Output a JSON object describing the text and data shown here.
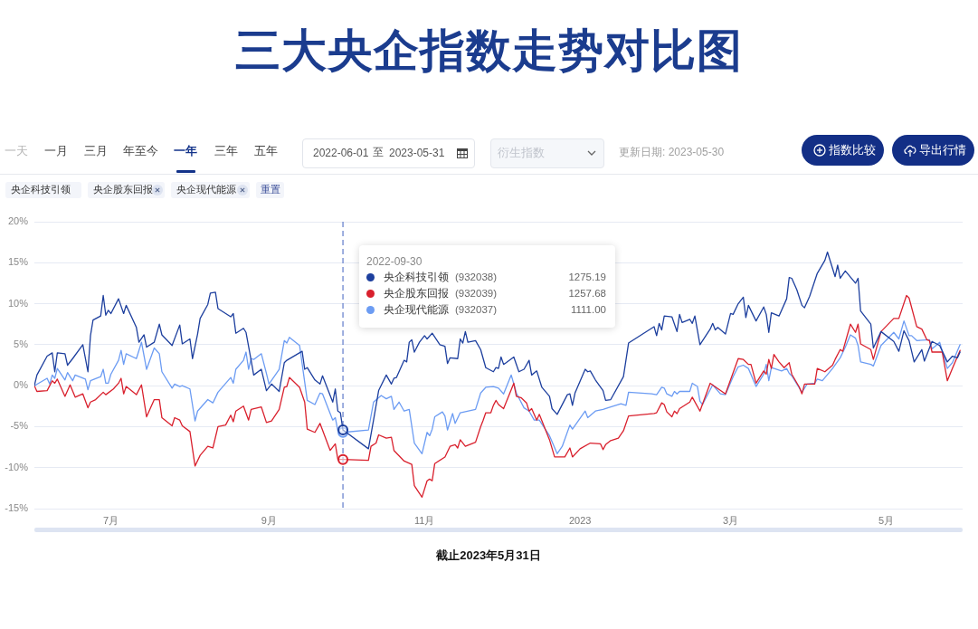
{
  "chart_data": {
    "type": "line",
    "title": "三大央企指数走势对比图",
    "series": [
      {
        "name": "央企科技引领",
        "color": "#1d3f9e",
        "x": [
          "2022-06-01",
          "2022-06-02",
          "2022-06-06",
          "2022-06-08",
          "2022-06-09",
          "2022-06-10",
          "2022-06-13",
          "2022-06-14",
          "2022-06-16",
          "2022-06-20",
          "2022-06-22",
          "2022-06-23",
          "2022-06-24",
          "2022-06-27",
          "2022-06-28",
          "2022-06-29",
          "2022-06-30",
          "2022-07-01",
          "2022-07-04",
          "2022-07-06",
          "2022-07-07",
          "2022-07-11",
          "2022-07-12",
          "2022-07-14",
          "2022-07-15",
          "2022-07-18",
          "2022-07-20",
          "2022-07-21",
          "2022-07-25",
          "2022-07-28",
          "2022-07-29",
          "2022-08-01",
          "2022-08-02",
          "2022-08-04",
          "2022-08-05",
          "2022-08-08",
          "2022-08-09",
          "2022-08-11",
          "2022-08-12",
          "2022-08-17",
          "2022-08-18",
          "2022-08-19",
          "2022-08-22",
          "2022-08-23",
          "2022-08-25",
          "2022-08-26",
          "2022-08-29",
          "2022-08-31",
          "2022-09-02",
          "2022-09-05",
          "2022-09-07",
          "2022-09-08",
          "2022-09-14",
          "2022-09-15",
          "2022-09-16",
          "2022-09-19",
          "2022-09-21",
          "2022-09-22",
          "2022-09-26",
          "2022-09-27",
          "2022-09-28",
          "2022-09-29",
          "2022-09-30",
          "2022-10-10",
          "2022-10-12",
          "2022-10-14",
          "2022-10-17",
          "2022-10-19",
          "2022-10-20",
          "2022-10-21",
          "2022-10-24",
          "2022-10-25",
          "2022-10-26",
          "2022-10-27",
          "2022-10-28",
          "2022-10-30",
          "2022-11-01",
          "2022-11-02",
          "2022-11-04",
          "2022-11-07",
          "2022-11-09",
          "2022-11-10",
          "2022-11-11",
          "2022-11-14",
          "2022-11-15",
          "2022-11-16",
          "2022-11-17",
          "2022-11-18",
          "2022-11-21",
          "2022-11-23",
          "2022-11-25",
          "2022-11-28",
          "2022-11-29",
          "2022-11-30",
          "2022-12-01",
          "2022-12-02",
          "2022-12-03",
          "2022-12-06",
          "2022-12-08",
          "2022-12-10",
          "2022-12-12",
          "2022-12-13",
          "2022-12-15",
          "2022-12-17",
          "2022-12-20",
          "2022-12-21",
          "2022-12-23",
          "2022-12-27",
          "2022-12-28",
          "2022-12-29",
          "2022-12-30",
          "2023-01-03",
          "2023-01-04",
          "2023-01-05",
          "2023-01-07",
          "2023-01-10",
          "2023-01-11",
          "2023-01-13",
          "2023-01-18",
          "2023-01-20",
          "2023-01-30",
          "2023-01-31",
          "2023-02-01",
          "2023-02-02",
          "2023-02-03",
          "2023-02-06",
          "2023-02-08",
          "2023-02-09",
          "2023-02-10",
          "2023-02-13",
          "2023-02-14",
          "2023-02-15",
          "2023-02-17",
          "2023-02-21",
          "2023-02-22",
          "2023-02-23",
          "2023-02-24",
          "2023-02-27",
          "2023-03-01",
          "2023-03-02",
          "2023-03-04",
          "2023-03-06",
          "2023-03-07",
          "2023-03-08",
          "2023-03-11",
          "2023-03-14",
          "2023-03-15",
          "2023-03-16",
          "2023-03-17",
          "2023-03-20",
          "2023-03-23",
          "2023-03-24",
          "2023-03-25",
          "2023-03-27",
          "2023-03-29",
          "2023-03-30",
          "2023-04-01",
          "2023-04-04",
          "2023-04-07",
          "2023-04-08",
          "2023-04-11",
          "2023-04-12",
          "2023-04-13",
          "2023-04-15",
          "2023-04-19",
          "2023-04-20",
          "2023-04-21",
          "2023-04-25",
          "2023-04-26",
          "2023-04-29",
          "2023-05-04",
          "2023-05-06",
          "2023-05-08",
          "2023-05-10",
          "2023-05-12",
          "2023-05-15",
          "2023-05-16",
          "2023-05-19",
          "2023-05-22",
          "2023-05-25",
          "2023-05-27",
          "2023-05-29",
          "2023-05-30"
        ],
        "values": [
          0,
          1.3,
          3.6,
          4.0,
          1.7,
          4.0,
          3.9,
          2.5,
          3.3,
          5.0,
          1.7,
          6.1,
          8.0,
          8.5,
          11.0,
          8.6,
          9.2,
          8.8,
          10.6,
          8.8,
          9.8,
          7.1,
          5.3,
          6.2,
          4.7,
          5.3,
          7.5,
          6.2,
          4.9,
          7.4,
          5.1,
          5.7,
          3.3,
          6.3,
          8.2,
          9.9,
          11.3,
          11.4,
          9.4,
          8.4,
          8.8,
          6.4,
          7.0,
          6.5,
          3.1,
          1.3,
          2.0,
          -0.6,
          0.2,
          -0.7,
          2.8,
          3.1,
          4.2,
          2.0,
          2.2,
          0.7,
          0.2,
          1.2,
          -2.0,
          -0.4,
          -3.1,
          -3.3,
          -5.4,
          -7.7,
          -4.2,
          -0.6,
          1.3,
          0.2,
          0.9,
          1.0,
          3.1,
          2.9,
          5.3,
          5.6,
          4.1,
          5.3,
          6.1,
          5.7,
          6.4,
          5.0,
          4.8,
          2.7,
          3.4,
          3.3,
          5.7,
          5.2,
          6.6,
          5.3,
          5.5,
          4.4,
          2.2,
          1.7,
          2.2,
          2.1,
          3.5,
          2.6,
          2.8,
          3.5,
          1.7,
          2.0,
          3.1,
          1.3,
          1.8,
          -0.2,
          -1.3,
          -2.8,
          -3.5,
          -1.1,
          -1.0,
          -2.4,
          -0.9,
          2.0,
          1.7,
          1.8,
          0.7,
          -0.6,
          -1.8,
          -1.7,
          1.1,
          5.2,
          7.2,
          6.1,
          7.6,
          6.8,
          8.5,
          8.4,
          6.6,
          8.7,
          7.7,
          8.1,
          7.6,
          8.5,
          5.0,
          6.9,
          7.6,
          6.8,
          7.1,
          6.3,
          8.8,
          8.7,
          10.0,
          10.8,
          8.3,
          9.8,
          7.9,
          9.6,
          8.7,
          6.5,
          8.9,
          8.5,
          10.6,
          13.2,
          13.1,
          11.7,
          9.8,
          9.5,
          10.9,
          13.7,
          15.3,
          16.3,
          13.3,
          14.7,
          13.1,
          14.0,
          12.5,
          13.1,
          9.1,
          7.5,
          4.6,
          6.6,
          5.4,
          4.2,
          6.7,
          5.5,
          2.9,
          4.4,
          3.0,
          5.4,
          4.9,
          2.9,
          3.6,
          3.4,
          4.1
        ]
      },
      {
        "name": "央企股东回报",
        "color": "#d9202d",
        "x": [
          "2022-06-01",
          "2022-06-02",
          "2022-06-06",
          "2022-06-08",
          "2022-06-09",
          "2022-06-10",
          "2022-06-13",
          "2022-06-15",
          "2022-06-17",
          "2022-06-20",
          "2022-06-22",
          "2022-06-23",
          "2022-06-25",
          "2022-06-28",
          "2022-06-29",
          "2022-07-02",
          "2022-07-04",
          "2022-07-05",
          "2022-07-06",
          "2022-07-07",
          "2022-07-11",
          "2022-07-13",
          "2022-07-15",
          "2022-07-18",
          "2022-07-20",
          "2022-07-21",
          "2022-07-25",
          "2022-07-26",
          "2022-07-28",
          "2022-07-29",
          "2022-08-01",
          "2022-08-03",
          "2022-08-05",
          "2022-08-08",
          "2022-08-10",
          "2022-08-12",
          "2022-08-15",
          "2022-08-17",
          "2022-08-18",
          "2022-08-19",
          "2022-08-22",
          "2022-08-24",
          "2022-08-25",
          "2022-08-29",
          "2022-08-31",
          "2022-09-02",
          "2022-09-05",
          "2022-09-07",
          "2022-09-08",
          "2022-09-09",
          "2022-09-13",
          "2022-09-15",
          "2022-09-16",
          "2022-09-19",
          "2022-09-21",
          "2022-09-25",
          "2022-09-27",
          "2022-09-28",
          "2022-09-30",
          "2022-10-10",
          "2022-10-11",
          "2022-10-13",
          "2022-10-14",
          "2022-10-17",
          "2022-10-19",
          "2022-10-20",
          "2022-10-24",
          "2022-10-27",
          "2022-10-28",
          "2022-10-31",
          "2022-11-02",
          "2022-11-03",
          "2022-11-04",
          "2022-11-05",
          "2022-11-09",
          "2022-11-11",
          "2022-11-13",
          "2022-11-14",
          "2022-11-15",
          "2022-11-17",
          "2022-11-21",
          "2022-11-23",
          "2022-11-24",
          "2022-11-25",
          "2022-11-27",
          "2022-11-28",
          "2022-11-29",
          "2022-11-30",
          "2022-12-02",
          "2022-12-06",
          "2022-12-07",
          "2022-12-09",
          "2022-12-11",
          "2022-12-12",
          "2022-12-13",
          "2022-12-15",
          "2022-12-16",
          "2022-12-20",
          "2022-12-22",
          "2022-12-26",
          "2022-12-28",
          "2022-12-29",
          "2023-01-01",
          "2023-01-05",
          "2023-01-09",
          "2023-01-10",
          "2023-01-11",
          "2023-01-13",
          "2023-01-16",
          "2023-01-18",
          "2023-01-20",
          "2023-01-30",
          "2023-01-31",
          "2023-02-02",
          "2023-02-03",
          "2023-02-04",
          "2023-02-06",
          "2023-02-07",
          "2023-02-08",
          "2023-02-09",
          "2023-02-13",
          "2023-02-14",
          "2023-02-17",
          "2023-02-21",
          "2023-02-27",
          "2023-03-04",
          "2023-03-06",
          "2023-03-08",
          "2023-03-09",
          "2023-03-11",
          "2023-03-14",
          "2023-03-15",
          "2023-03-16",
          "2023-03-17",
          "2023-03-18",
          "2023-03-20",
          "2023-03-22",
          "2023-03-24",
          "2023-03-25",
          "2023-03-28",
          "2023-03-29",
          "2023-03-30",
          "2023-04-03",
          "2023-04-04",
          "2023-04-07",
          "2023-04-10",
          "2023-04-11",
          "2023-04-13",
          "2023-04-14",
          "2023-04-17",
          "2023-04-19",
          "2023-04-20",
          "2023-04-21",
          "2023-04-25",
          "2023-04-26",
          "2023-04-29",
          "2023-05-04",
          "2023-05-06",
          "2023-05-09",
          "2023-05-10",
          "2023-05-13",
          "2023-05-15",
          "2023-05-17",
          "2023-05-18",
          "2023-05-19",
          "2023-05-23",
          "2023-05-25",
          "2023-05-27",
          "2023-05-30"
        ],
        "values": [
          0,
          -0.7,
          -0.6,
          0.6,
          0.3,
          0.8,
          -1.3,
          0.1,
          -1.4,
          -1.0,
          -2.7,
          -2.0,
          -1.7,
          -0.8,
          -1.1,
          -0.4,
          0.3,
          0.9,
          -1.0,
          -0.1,
          -1.1,
          0.1,
          -3.8,
          -1.7,
          -1.7,
          -3.9,
          -4.9,
          -3.9,
          -4.2,
          -4.9,
          -5.6,
          -9.8,
          -8.5,
          -7.4,
          -7.6,
          -5.0,
          -4.8,
          -3.6,
          -4.4,
          -3.1,
          -2.5,
          -4.2,
          -2.9,
          -2.6,
          -4.5,
          -4.3,
          -2.9,
          -0.2,
          -0.1,
          1.0,
          -0.2,
          -2.0,
          -5.3,
          -5.7,
          -4.6,
          -7.9,
          -7.1,
          -9.0,
          -9.0,
          -9.1,
          -7.4,
          -7.0,
          -6.0,
          -6.4,
          -6.3,
          -7.9,
          -9.2,
          -9.6,
          -12.2,
          -13.6,
          -11.6,
          -11.4,
          -11.6,
          -9.5,
          -8.7,
          -7.4,
          -7.2,
          -7.6,
          -6.6,
          -7.4,
          -6.9,
          -5.0,
          -4.2,
          -3.3,
          -3.3,
          -2.4,
          -1.8,
          -2.3,
          -2.8,
          0.3,
          -1.3,
          -1.5,
          -2.1,
          -3.1,
          -2.8,
          -4.2,
          -3.5,
          -6.6,
          -8.7,
          -8.7,
          -7.6,
          -8.7,
          -7.7,
          -7.0,
          -7.1,
          -7.8,
          -7.2,
          -6.7,
          -6.4,
          -5.5,
          -3.7,
          -3.4,
          -3.3,
          -2.1,
          -2.3,
          -3.2,
          -3.8,
          -3.1,
          -3.4,
          -2.8,
          -2.0,
          -1.4,
          -3.1,
          0.3,
          -1.0,
          3.3,
          3.2,
          2.6,
          2.6,
          0.3,
          1.8,
          1.4,
          3.2,
          2.1,
          3.8,
          2.9,
          2.2,
          2.8,
          1.4,
          -0.2,
          -1.0,
          0.2,
          0.2,
          2.1,
          1.7,
          2.5,
          3.2,
          4.4,
          4.2,
          7.5,
          6.5,
          7.5,
          5.1,
          4.4,
          3.2,
          6.6,
          8.2,
          8.2,
          11.0,
          10.7,
          7.2,
          6.9,
          5.6,
          5.5,
          4.1,
          4.1,
          0.6,
          2.1,
          4.3
        ]
      },
      {
        "name": "央企现代能源",
        "color": "#6c9cf3",
        "x": [
          "2022-06-01",
          "2022-06-06",
          "2022-06-07",
          "2022-06-08",
          "2022-06-09",
          "2022-06-10",
          "2022-06-13",
          "2022-06-14",
          "2022-06-16",
          "2022-06-17",
          "2022-06-21",
          "2022-06-22",
          "2022-06-23",
          "2022-06-27",
          "2022-06-28",
          "2022-06-29",
          "2022-06-30",
          "2022-07-01",
          "2022-07-04",
          "2022-07-05",
          "2022-07-06",
          "2022-07-07",
          "2022-07-11",
          "2022-07-12",
          "2022-07-13",
          "2022-07-15",
          "2022-07-18",
          "2022-07-20",
          "2022-07-21",
          "2022-07-25",
          "2022-07-26",
          "2022-07-28",
          "2022-07-29",
          "2022-08-01",
          "2022-08-03",
          "2022-08-04",
          "2022-08-08",
          "2022-08-10",
          "2022-08-12",
          "2022-08-17",
          "2022-08-18",
          "2022-08-19",
          "2022-08-22",
          "2022-08-23",
          "2022-08-24",
          "2022-08-25",
          "2022-08-26",
          "2022-08-29",
          "2022-08-31",
          "2022-09-01",
          "2022-09-05",
          "2022-09-07",
          "2022-09-08",
          "2022-09-09",
          "2022-09-13",
          "2022-09-16",
          "2022-09-19",
          "2022-09-21",
          "2022-09-22",
          "2022-09-26",
          "2022-09-27",
          "2022-09-28",
          "2022-09-30",
          "2022-10-10",
          "2022-10-12",
          "2022-10-15",
          "2022-10-17",
          "2022-10-19",
          "2022-10-20",
          "2022-10-22",
          "2022-10-24",
          "2022-10-26",
          "2022-10-28",
          "2022-10-31",
          "2022-11-02",
          "2022-11-03",
          "2022-11-04",
          "2022-11-05",
          "2022-11-08",
          "2022-11-09",
          "2022-11-10",
          "2022-11-12",
          "2022-11-13",
          "2022-11-15",
          "2022-11-21",
          "2022-11-23",
          "2022-11-25",
          "2022-11-28",
          "2022-11-30",
          "2022-12-02",
          "2022-12-05",
          "2022-12-07",
          "2022-12-10",
          "2022-12-12",
          "2022-12-14",
          "2022-12-16",
          "2022-12-20",
          "2022-12-23",
          "2022-12-25",
          "2022-12-28",
          "2022-12-29",
          "2023-01-03",
          "2023-01-04",
          "2023-01-07",
          "2023-01-10",
          "2023-01-13",
          "2023-01-17",
          "2023-01-19",
          "2023-01-20",
          "2023-01-29",
          "2023-01-31",
          "2023-02-02",
          "2023-02-03",
          "2023-02-04",
          "2023-02-06",
          "2023-02-07",
          "2023-02-08",
          "2023-02-09",
          "2023-02-13",
          "2023-02-14",
          "2023-02-16",
          "2023-02-17",
          "2023-02-18",
          "2023-02-22",
          "2023-02-25",
          "2023-02-27",
          "2023-03-02",
          "2023-03-04",
          "2023-03-06",
          "2023-03-08",
          "2023-03-11",
          "2023-03-14",
          "2023-03-15",
          "2023-03-16",
          "2023-03-17",
          "2023-03-21",
          "2023-03-23",
          "2023-03-24",
          "2023-03-25",
          "2023-03-28",
          "2023-03-29",
          "2023-03-31",
          "2023-04-03",
          "2023-04-04",
          "2023-04-06",
          "2023-04-10",
          "2023-04-13",
          "2023-04-15",
          "2023-04-17",
          "2023-04-19",
          "2023-04-20",
          "2023-04-21",
          "2023-04-25",
          "2023-04-26",
          "2023-04-29",
          "2023-05-04",
          "2023-05-06",
          "2023-05-08",
          "2023-05-10",
          "2023-05-11",
          "2023-05-13",
          "2023-05-18",
          "2023-05-19",
          "2023-05-22",
          "2023-05-25",
          "2023-05-27",
          "2023-05-30"
        ],
        "values": [
          0,
          0.9,
          0.2,
          1.3,
          0.9,
          2.1,
          0.7,
          1.6,
          0.6,
          1.3,
          0.8,
          -0.5,
          0.6,
          1.1,
          2.0,
          0.3,
          0.3,
          1.4,
          3.1,
          4.3,
          2.6,
          3.9,
          3.3,
          4.3,
          5.3,
          2.0,
          4.6,
          3.9,
          1.7,
          -0.3,
          0.2,
          -0.1,
          0,
          -0.4,
          -4.3,
          -3.1,
          -1.7,
          -2.1,
          -0.8,
          1.0,
          0.3,
          2.0,
          3.1,
          4.1,
          2.0,
          3.3,
          3.2,
          3.9,
          1.5,
          0.2,
          2.0,
          5.5,
          5.2,
          5.9,
          4.9,
          -1.8,
          -2.3,
          -0.9,
          -1.0,
          -4.2,
          -3.9,
          -5.5,
          -5.7,
          -5.4,
          -2.0,
          -1.2,
          -1.6,
          -1.3,
          -2.9,
          -2.0,
          -3.1,
          -2.9,
          -7.0,
          -8.3,
          -5.7,
          -6.1,
          -5.3,
          -3.8,
          -3.2,
          -3.7,
          -5.4,
          -3.4,
          -4.6,
          -3.3,
          -2.9,
          -0.9,
          -0.2,
          -0.1,
          -0.3,
          -1.0,
          1.3,
          -0.9,
          -2.7,
          -3.1,
          -4.2,
          -4.2,
          -6.1,
          -8.3,
          -7.4,
          -4.8,
          -5.3,
          -3.1,
          -3.9,
          -3.1,
          -2.9,
          -2.6,
          -2.2,
          -2.4,
          -0.8,
          -1.0,
          -1.1,
          -0.2,
          -0.3,
          -1.0,
          -1.3,
          -0.7,
          -1.0,
          -0.7,
          -0.7,
          0.3,
          -0.1,
          -1.9,
          -2.3,
          0.1,
          -1.0,
          -1.1,
          1.1,
          2.3,
          2.5,
          2.1,
          -0.1,
          1.4,
          2.6,
          0.6,
          2.2,
          1.8,
          2.1,
          1.5,
          1.2,
          -0.3,
          -0.8,
          0.2,
          0.3,
          0.8,
          0.6,
          2.1,
          3.4,
          4.7,
          6.2,
          5.8,
          4.9,
          2.9,
          2.6,
          2.4,
          4.9,
          6.5,
          5.7,
          7.9,
          6.1,
          6.1,
          5.5,
          5.6,
          4.5,
          5.3,
          2.1,
          2.8,
          5.0
        ]
      }
    ],
    "xlim": [
      "2022-06-01",
      "2023-05-31"
    ],
    "xticks": [
      {
        "value": "2022-07-01",
        "label": "7月"
      },
      {
        "value": "2022-09-01",
        "label": "9月"
      },
      {
        "value": "2022-11-01",
        "label": "11月"
      },
      {
        "value": "2023-01-01",
        "label": "2023"
      },
      {
        "value": "2023-03-01",
        "label": "3月"
      },
      {
        "value": "2023-05-01",
        "label": "5月"
      }
    ],
    "ylim": [
      -15,
      20
    ],
    "yticks": [
      {
        "value": -15,
        "label": "-15%"
      },
      {
        "value": -10,
        "label": "-10%"
      },
      {
        "value": -5,
        "label": "-5%"
      },
      {
        "value": 0,
        "label": "0%"
      },
      {
        "value": 5,
        "label": "5%"
      },
      {
        "value": 10,
        "label": "10%"
      },
      {
        "value": 15,
        "label": "15%"
      },
      {
        "value": 20,
        "label": "20%"
      }
    ],
    "grid": "y",
    "legend": "top",
    "marker": "none",
    "line_style": "solid",
    "ref_lines": [
      {
        "axis": "x",
        "value": "2022-09-30",
        "color": "#3f5fbf",
        "line_style": "dashed"
      }
    ],
    "annotations": [
      "一天",
      "一月",
      "三月",
      "年至今",
      "一年",
      "三年",
      "五年",
      "2022-06-01",
      "至",
      "2023-05-31",
      "衍生指数",
      "更新日期: 2023-05-30",
      "指数比较",
      "导出行情",
      "重置",
      "2022-09-30",
      "(932038)",
      "1275.19",
      "(932039)",
      "1257.68",
      "(932037)",
      "1111.00",
      "截止2023年5月31日"
    ]
  }
}
